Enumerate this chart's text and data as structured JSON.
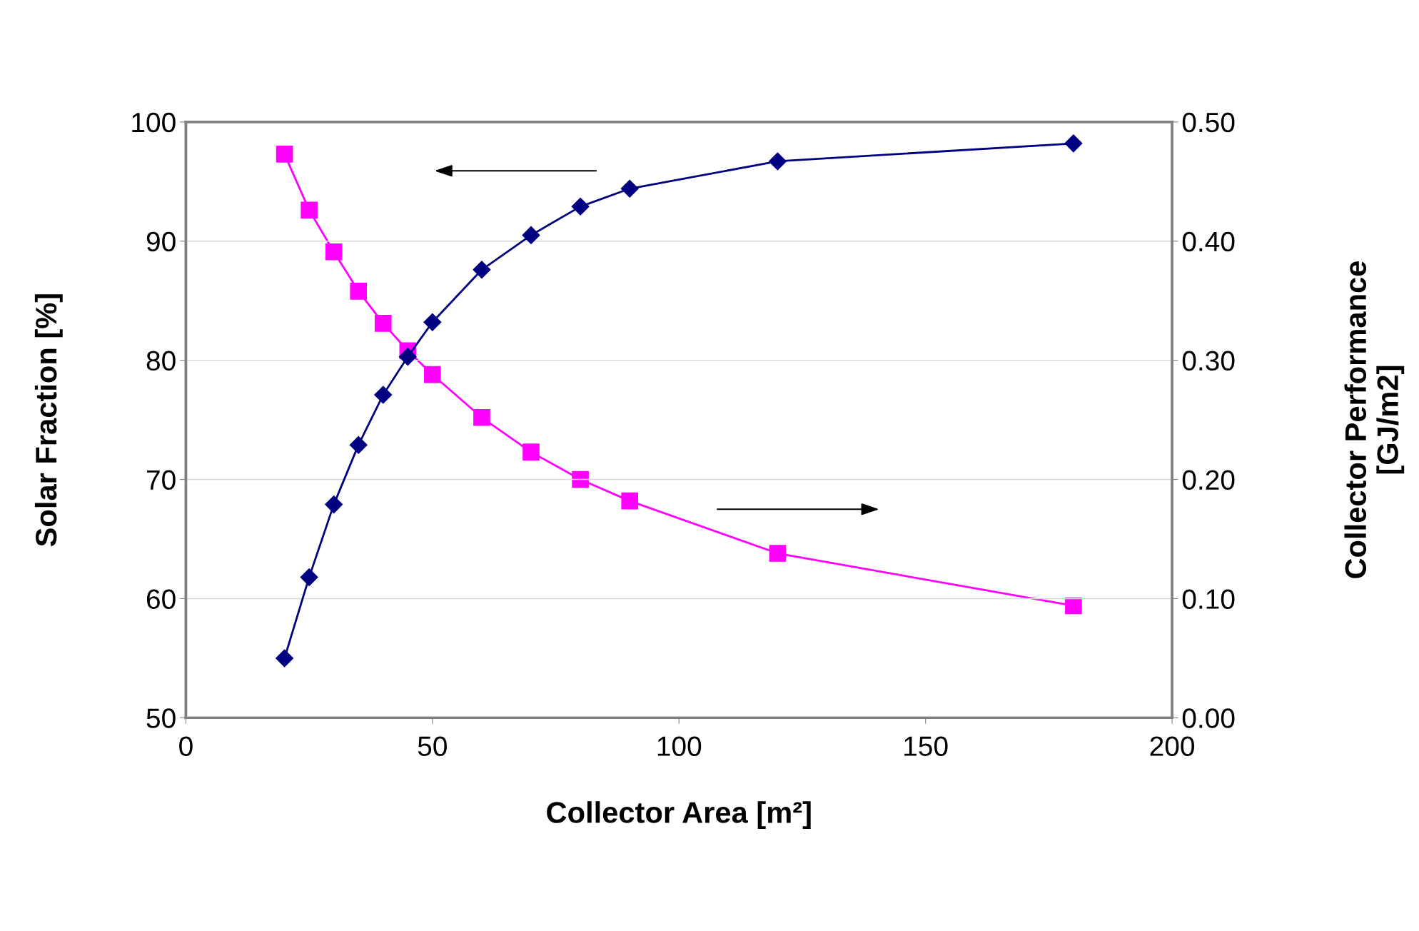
{
  "chart_data": {
    "type": "line",
    "xlabel": "Collector Area [m²]",
    "ylabel": "Solar Fraction [%]",
    "y2label": "Collector Performance\n[GJ/m2]",
    "series": [
      {
        "color": "#000080",
        "marker": "diamond",
        "x": [
          20,
          25,
          30,
          35,
          40,
          45,
          50,
          60,
          70,
          80,
          90,
          120,
          180
        ],
        "values": [
          55.0,
          61.8,
          67.9,
          72.9,
          77.1,
          80.3,
          83.2,
          87.6,
          90.5,
          92.9,
          94.4,
          96.7,
          98.2
        ]
      },
      {
        "color": "#ff00ff",
        "marker": "square",
        "axis": "y2",
        "x": [
          20,
          25,
          30,
          35,
          40,
          45,
          50,
          60,
          70,
          80,
          90,
          120,
          180
        ],
        "values": [
          0.473,
          0.426,
          0.391,
          0.358,
          0.331,
          0.308,
          0.288,
          0.252,
          0.223,
          0.2,
          0.182,
          0.138,
          0.094
        ]
      }
    ],
    "xlim": [
      0,
      200
    ],
    "xticks": [
      0,
      50,
      100,
      150,
      200
    ],
    "ylim": [
      50,
      100
    ],
    "yticks": [
      50,
      60,
      70,
      80,
      90,
      100
    ],
    "y2lim": [
      0,
      0.5
    ],
    "y2ticks": [
      {
        "value": 0,
        "label": "0.00"
      },
      {
        "value": 0.1,
        "label": "0.10"
      },
      {
        "value": 0.2,
        "label": "0.20"
      },
      {
        "value": 0.3,
        "label": "0.30"
      },
      {
        "value": 0.4,
        "label": "0.40"
      },
      {
        "value": 0.5,
        "label": "0.50"
      }
    ],
    "grid": "y",
    "line_style": "solid"
  }
}
